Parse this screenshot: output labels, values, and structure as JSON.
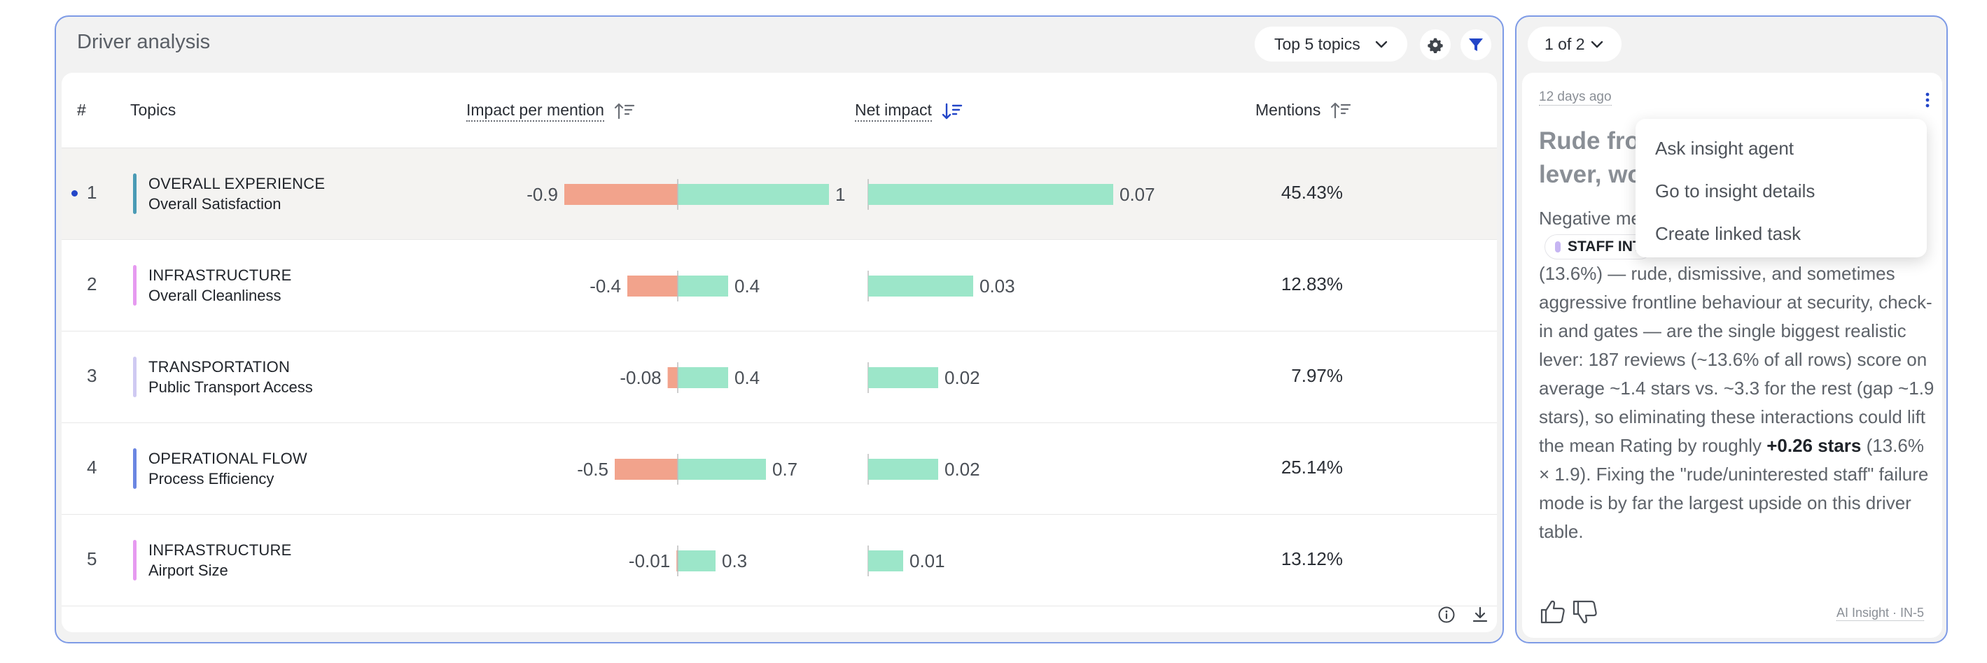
{
  "driver_panel": {
    "title": "Driver analysis",
    "topics_select": "Top 5 topics",
    "columns": {
      "rank": "#",
      "topics": "Topics",
      "impact_per_mention": "Impact per mention",
      "net_impact": "Net impact",
      "mentions": "Mentions"
    },
    "rows": [
      {
        "rank": "1",
        "category": "OVERALL EXPERIENCE",
        "topic": "Overall Satisfaction",
        "color": "#4a9bb5",
        "neg": -0.9,
        "pos": 1.2,
        "neg_label": "-0.9",
        "pos_label": "1.2",
        "net": 0.07,
        "net_label": "0.07",
        "mentions": "45.43%",
        "selected": true
      },
      {
        "rank": "2",
        "category": "INFRASTRUCTURE",
        "topic": "Overall Cleanliness",
        "color": "#e69af0",
        "neg": -0.4,
        "pos": 0.4,
        "neg_label": "-0.4",
        "pos_label": "0.4",
        "net": 0.03,
        "net_label": "0.03",
        "mentions": "12.83%"
      },
      {
        "rank": "3",
        "category": "TRANSPORTATION",
        "topic": "Public Transport Access",
        "color": "#cfcaf2",
        "neg": -0.08,
        "pos": 0.4,
        "neg_label": "-0.08",
        "pos_label": "0.4",
        "net": 0.02,
        "net_label": "0.02",
        "mentions": "7.97%"
      },
      {
        "rank": "4",
        "category": "OPERATIONAL FLOW",
        "topic": "Process Efficiency",
        "color": "#6b86e2",
        "neg": -0.5,
        "pos": 0.7,
        "neg_label": "-0.5",
        "pos_label": "0.7",
        "net": 0.02,
        "net_label": "0.02",
        "mentions": "25.14%"
      },
      {
        "rank": "5",
        "category": "INFRASTRUCTURE",
        "topic": "Airport Size",
        "color": "#e69af0",
        "neg": -0.01,
        "pos": 0.3,
        "neg_label": "-0.01",
        "pos_label": "0.3",
        "net": 0.01,
        "net_label": "0.01",
        "mentions": "13.12%"
      }
    ],
    "colors": {
      "negative": "#f2a38c",
      "positive": "#9ce6c9",
      "accent": "#2346c8"
    }
  },
  "insight_panel": {
    "pager": "1 of 2",
    "age": "12 days ago",
    "title_visible": "Rude fron",
    "title_visible_2": "lever, wo",
    "body_intro": "Negative me",
    "tag": "STAFF INT",
    "body_rest": "(13.6%) — rude, dismissive, and sometimes aggressive frontline behaviour at security, check-in and gates — are the single biggest realistic lever: 187 reviews (~13.6% of all rows) score on average ~1.4 stars vs. ~3.3 for the rest (gap ~1.9 stars), so eliminating these interactions could lift the mean Rating by roughly ",
    "body_bold": "+0.26 stars",
    "body_tail": " (13.6% × 1.9). Fixing the \"rude/uninterested staff\" failure mode is by far the largest upside on this driver table.",
    "ai_label": "AI Insight · IN-5",
    "menu": [
      "Ask insight agent",
      "Go to insight details",
      "Create linked task"
    ]
  }
}
